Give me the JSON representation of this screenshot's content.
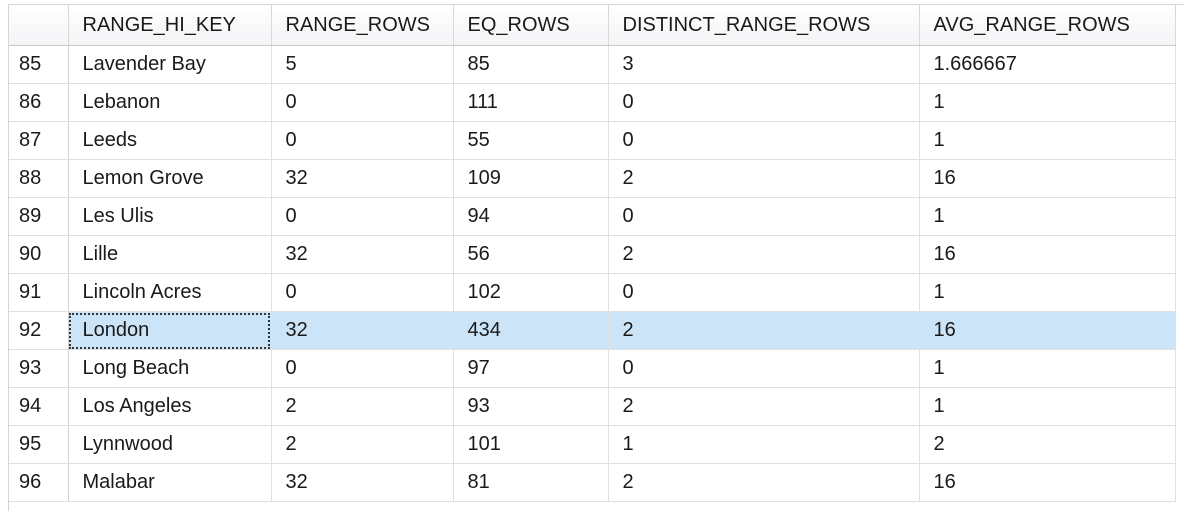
{
  "columns": [
    "",
    "RANGE_HI_KEY",
    "RANGE_ROWS",
    "EQ_ROWS",
    "DISTINCT_RANGE_ROWS",
    "AVG_RANGE_ROWS"
  ],
  "rows": [
    [
      "85",
      "Lavender Bay",
      "5",
      "85",
      "3",
      "1.666667"
    ],
    [
      "86",
      "Lebanon",
      "0",
      "111",
      "0",
      "1"
    ],
    [
      "87",
      "Leeds",
      "0",
      "55",
      "0",
      "1"
    ],
    [
      "88",
      "Lemon Grove",
      "32",
      "109",
      "2",
      "16"
    ],
    [
      "89",
      "Les Ulis",
      "0",
      "94",
      "0",
      "1"
    ],
    [
      "90",
      "Lille",
      "32",
      "56",
      "2",
      "16"
    ],
    [
      "91",
      "Lincoln Acres",
      "0",
      "102",
      "0",
      "1"
    ],
    [
      "92",
      "London",
      "32",
      "434",
      "2",
      "16"
    ],
    [
      "93",
      "Long Beach",
      "0",
      "97",
      "0",
      "1"
    ],
    [
      "94",
      "Los Angeles",
      "2",
      "93",
      "2",
      "1"
    ],
    [
      "95",
      "Lynnwood",
      "2",
      "101",
      "1",
      "2"
    ],
    [
      "96",
      "Malabar",
      "32",
      "81",
      "2",
      "16"
    ]
  ],
  "selected_row_index": 7,
  "colors": {
    "selection": "#cce4f7",
    "grid_line": "#e0e0e0"
  }
}
